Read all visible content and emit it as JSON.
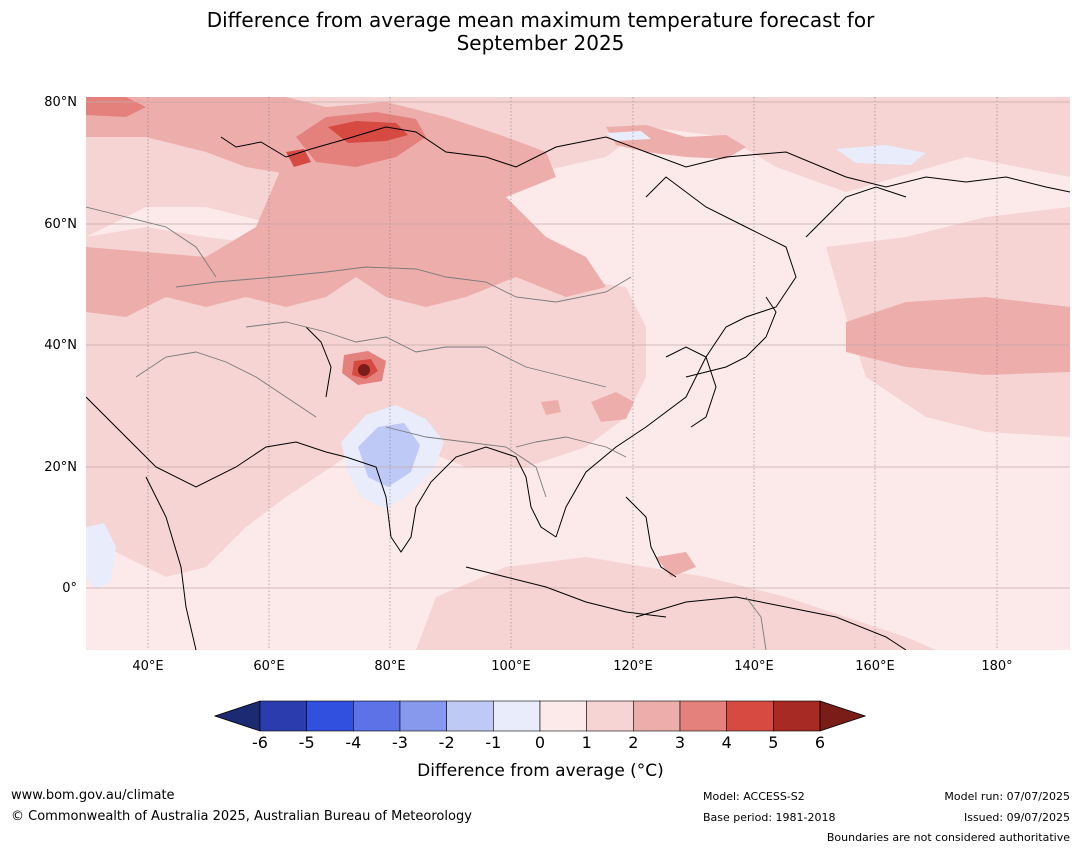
{
  "title_line1": "Difference from average mean maximum temperature forecast for",
  "title_line2": "September 2025",
  "lat_labels": [
    "80°N",
    "60°N",
    "40°N",
    "20°N",
    "0°"
  ],
  "lon_labels": [
    "40°E",
    "60°E",
    "80°E",
    "100°E",
    "120°E",
    "140°E",
    "160°E",
    "180°"
  ],
  "colorbar": {
    "ticks": [
      "-6",
      "-5",
      "-4",
      "-3",
      "-2",
      "-1",
      "0",
      "1",
      "2",
      "3",
      "4",
      "5",
      "6"
    ],
    "colors": [
      "#1b2a72",
      "#2a3cae",
      "#3250e0",
      "#5c72e6",
      "#8699ec",
      "#bfc9f5",
      "#e8ecfb",
      "#fceaea",
      "#f5d4d3",
      "#ecadab",
      "#e5817d",
      "#d64a42",
      "#a82a24",
      "#7a1c18"
    ],
    "label": "Difference from average (°C)"
  },
  "footer": {
    "website": "www.bom.gov.au/climate",
    "copyright": "© Commonwealth of Australia 2025, Australian Bureau of Meteorology",
    "model": "Model: ACCESS-S2",
    "base_period": "Base period: 1981-2018",
    "model_run": "Model run: 07/07/2025",
    "issued": "Issued: 09/07/2025",
    "disclaimer": "Boundaries are not considered authoritative"
  }
}
